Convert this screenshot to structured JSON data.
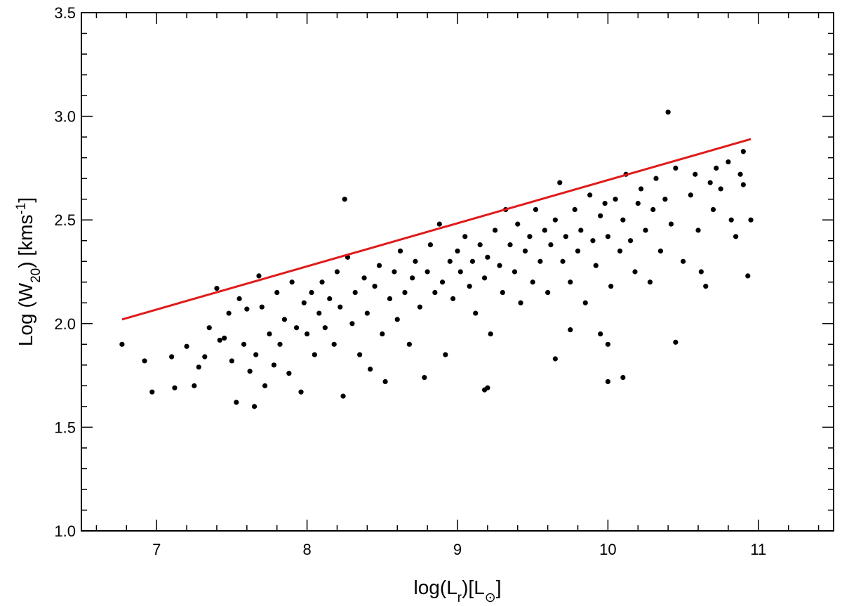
{
  "chart_data": {
    "type": "scatter",
    "xlabel_parts": [
      "log(L",
      "r",
      ")[L",
      "⊙",
      "]"
    ],
    "ylabel_parts": [
      "Log (W",
      "20",
      ") [kms",
      "-1",
      "]"
    ],
    "xlim": [
      6.5,
      11.5
    ],
    "ylim": [
      1.0,
      3.5
    ],
    "xticks": [
      7,
      8,
      9,
      10,
      11
    ],
    "yticks": [
      {
        "value": 1.0,
        "label": "1.0"
      },
      1.5,
      {
        "value": 2.0,
        "label": "2.0"
      },
      2.5,
      {
        "value": 3.0,
        "label": "3.0"
      },
      3.5
    ],
    "xminorticks": [
      6.6,
      6.8,
      7.2,
      7.4,
      7.6,
      7.8,
      8.2,
      8.4,
      8.6,
      8.8,
      9.2,
      9.4,
      9.6,
      9.8,
      10.2,
      10.4,
      10.6,
      10.8,
      11.2,
      11.4
    ],
    "yminorticks": [
      1.1,
      1.2,
      1.3,
      1.4,
      1.6,
      1.7,
      1.8,
      1.9,
      2.1,
      2.2,
      2.3,
      2.4,
      2.6,
      2.7,
      2.8,
      2.9,
      3.1,
      3.2,
      3.3,
      3.4
    ],
    "color": "#000000",
    "x": [
      6.77,
      6.92,
      6.97,
      7.1,
      7.12,
      7.2,
      7.25,
      7.28,
      7.32,
      7.35,
      7.4,
      7.42,
      7.53,
      7.65,
      7.68,
      8.25,
      8.24,
      9.18,
      10.4,
      10.45,
      10.0,
      10.1,
      10.93,
      10.95,
      10.9,
      9.65,
      9.75,
      9.95,
      10.0,
      9.2,
      7.45,
      7.48,
      7.5,
      7.55,
      7.58,
      7.6,
      7.62,
      7.66,
      7.7,
      7.72,
      7.75,
      7.78,
      7.8,
      7.82,
      7.85,
      7.88,
      7.9,
      7.93,
      7.96,
      7.98,
      8.0,
      8.03,
      8.05,
      8.08,
      8.1,
      8.12,
      8.15,
      8.18,
      8.2,
      8.22,
      8.27,
      8.3,
      8.32,
      8.35,
      8.38,
      8.4,
      8.42,
      8.45,
      8.48,
      8.5,
      8.52,
      8.55,
      8.58,
      8.6,
      8.62,
      8.65,
      8.68,
      8.7,
      8.72,
      8.75,
      8.78,
      8.8,
      8.82,
      8.85,
      8.88,
      8.9,
      8.92,
      8.95,
      8.97,
      9.0,
      9.02,
      9.05,
      9.08,
      9.1,
      9.12,
      9.15,
      9.18,
      9.2,
      9.22,
      9.25,
      9.28,
      9.3,
      9.32,
      9.35,
      9.38,
      9.4,
      9.42,
      9.45,
      9.48,
      9.5,
      9.52,
      9.55,
      9.58,
      9.6,
      9.62,
      9.65,
      9.68,
      9.7,
      9.72,
      9.75,
      9.78,
      9.8,
      9.82,
      9.85,
      9.88,
      9.9,
      9.92,
      9.95,
      9.98,
      10.0,
      10.02,
      10.05,
      10.08,
      10.1,
      10.12,
      10.15,
      10.18,
      10.2,
      10.22,
      10.25,
      10.28,
      10.3,
      10.32,
      10.35,
      10.38,
      10.42,
      10.45,
      10.5,
      10.55,
      10.58,
      10.6,
      10.62,
      10.65,
      10.68,
      10.7,
      10.72,
      10.75,
      10.8,
      10.82,
      10.85,
      10.88,
      10.9
    ],
    "y": [
      1.9,
      1.82,
      1.67,
      1.84,
      1.69,
      1.89,
      1.7,
      1.79,
      1.84,
      1.98,
      2.17,
      1.92,
      1.62,
      1.6,
      2.23,
      2.6,
      1.65,
      1.68,
      3.02,
      1.91,
      1.72,
      1.74,
      2.23,
      2.5,
      2.83,
      1.83,
      1.97,
      1.95,
      1.9,
      1.69,
      1.93,
      2.05,
      1.82,
      2.12,
      1.9,
      2.07,
      1.77,
      1.85,
      2.08,
      1.7,
      1.95,
      1.8,
      2.15,
      1.9,
      2.02,
      1.76,
      2.2,
      1.98,
      1.67,
      2.1,
      1.95,
      2.15,
      1.85,
      2.05,
      2.2,
      1.98,
      2.12,
      1.9,
      2.25,
      2.08,
      2.32,
      2.0,
      2.15,
      1.85,
      2.22,
      2.05,
      1.78,
      2.18,
      2.28,
      1.95,
      1.72,
      2.12,
      2.25,
      2.02,
      2.35,
      2.15,
      1.9,
      2.22,
      2.3,
      2.08,
      1.74,
      2.25,
      2.38,
      2.15,
      2.48,
      2.2,
      1.85,
      2.3,
      2.12,
      2.35,
      2.25,
      2.42,
      2.18,
      2.3,
      2.05,
      2.38,
      2.22,
      2.32,
      1.95,
      2.45,
      2.28,
      2.15,
      2.55,
      2.38,
      2.25,
      2.48,
      2.1,
      2.35,
      2.42,
      2.2,
      2.55,
      2.3,
      2.45,
      2.15,
      2.38,
      2.5,
      2.68,
      2.3,
      2.42,
      2.2,
      2.55,
      2.35,
      2.45,
      2.1,
      2.62,
      2.4,
      2.28,
      2.52,
      2.58,
      2.42,
      2.18,
      2.6,
      2.35,
      2.5,
      2.72,
      2.4,
      2.25,
      2.58,
      2.65,
      2.45,
      2.2,
      2.55,
      2.7,
      2.35,
      2.6,
      2.48,
      2.75,
      2.3,
      2.62,
      2.72,
      2.45,
      2.25,
      2.18,
      2.68,
      2.55,
      2.75,
      2.65,
      2.78,
      2.5,
      2.42,
      2.72,
      2.67
    ],
    "fit": {
      "x": [
        6.77,
        10.95
      ],
      "y": [
        2.02,
        2.89
      ],
      "color": "#e01a1a"
    }
  }
}
